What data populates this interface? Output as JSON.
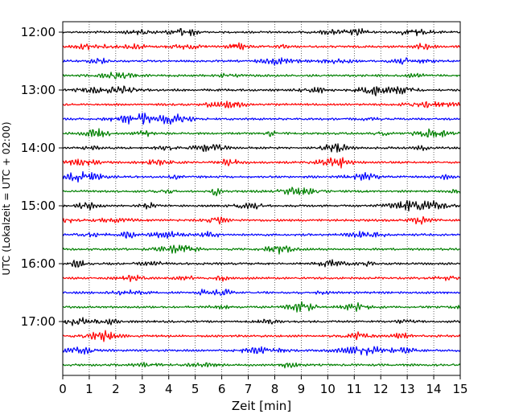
{
  "chart_data": {
    "type": "line",
    "xlabel": "Zeit  [min]",
    "ylabel": "UTC (Lokalzeit = UTC + 02:00)",
    "xlim": [
      0,
      15
    ],
    "x_ticks": [
      "0",
      "1",
      "2",
      "3",
      "4",
      "5",
      "6",
      "7",
      "8",
      "9",
      "10",
      "11",
      "12",
      "13",
      "14",
      "15"
    ],
    "y_ticks": [
      "12:00",
      "13:00",
      "14:00",
      "15:00",
      "16:00",
      "17:00"
    ],
    "vertical_grid": "dotted at every minute",
    "trace_interval_min": 15,
    "trace_count": 24,
    "trace_colors": [
      "#000000",
      "#ff0000",
      "#0000ff",
      "#008000"
    ],
    "traces_start": "12:00",
    "traces_end": "17:45"
  }
}
